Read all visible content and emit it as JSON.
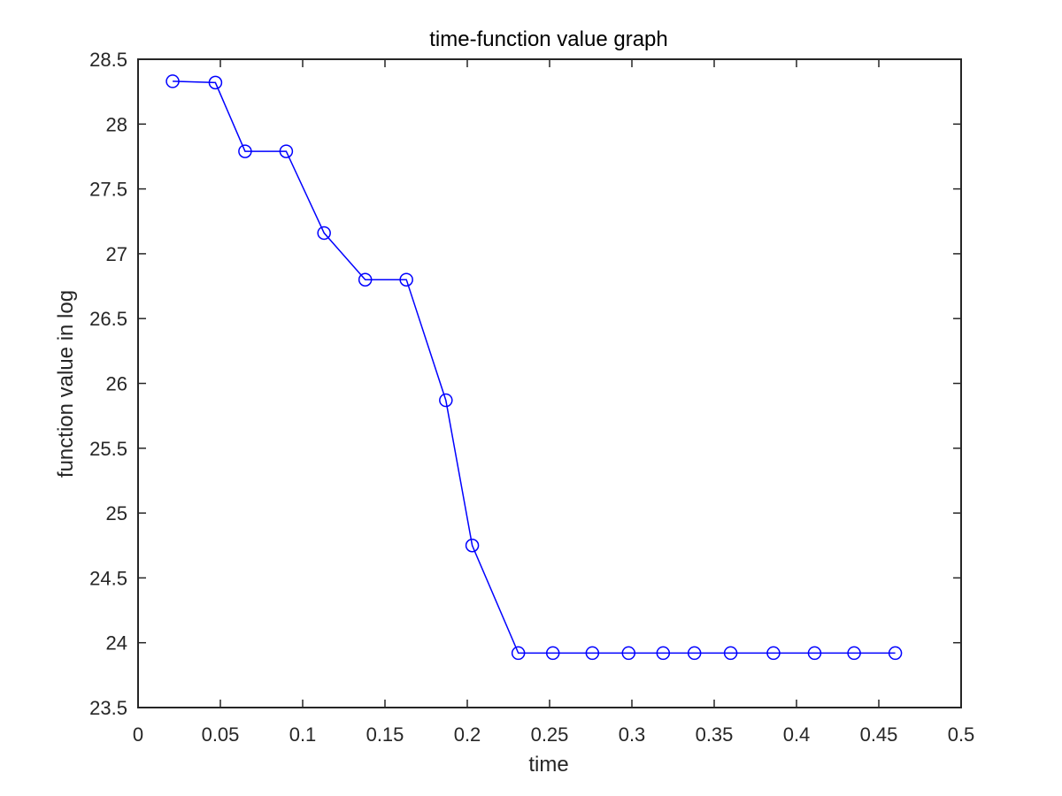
{
  "chart_data": {
    "type": "line",
    "title": "time-function value graph",
    "xlabel": "time",
    "ylabel": "function value in log",
    "xlim": [
      0,
      0.5
    ],
    "ylim": [
      23.5,
      28.5
    ],
    "xticks": [
      "0",
      "0.05",
      "0.1",
      "0.15",
      "0.2",
      "0.25",
      "0.3",
      "0.35",
      "0.4",
      "0.45",
      "0.5"
    ],
    "yticks": [
      "23.5",
      "24",
      "24.5",
      "25",
      "25.5",
      "26",
      "26.5",
      "27",
      "27.5",
      "28",
      "28.5"
    ],
    "grid": false,
    "legend": "none",
    "series": [
      {
        "color": "#0000ff",
        "marker": "circle",
        "x": [
          0.021,
          0.047,
          0.065,
          0.09,
          0.113,
          0.138,
          0.163,
          0.187,
          0.203,
          0.231,
          0.252,
          0.276,
          0.298,
          0.319,
          0.338,
          0.36,
          0.386,
          0.411,
          0.435,
          0.46
        ],
        "y": [
          28.33,
          28.32,
          27.79,
          27.79,
          27.16,
          26.8,
          26.8,
          25.87,
          24.75,
          23.92,
          23.92,
          23.92,
          23.92,
          23.92,
          23.92,
          23.92,
          23.92,
          23.92,
          23.92,
          23.92
        ]
      }
    ]
  }
}
